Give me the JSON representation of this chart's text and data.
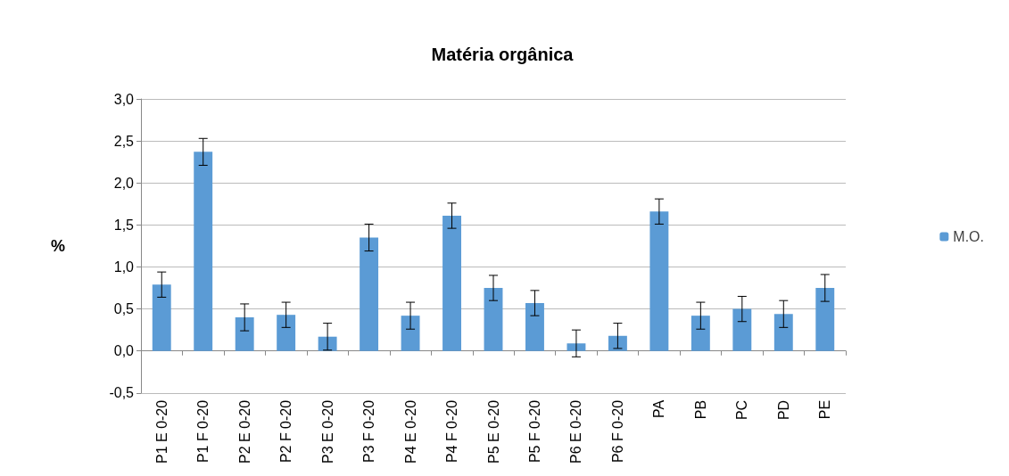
{
  "chart_data": {
    "type": "bar",
    "title": "Matéria orgânica",
    "ylabel": "%",
    "categories": [
      "P1 E 0-20",
      "P1 F 0-20",
      "P2 E 0-20",
      "P2 F 0-20",
      "P3 E 0-20",
      "P3 F 0-20",
      "P4 E 0-20",
      "P4 F 0-20",
      "P5 E 0-20",
      "P5 F 0-20",
      "P6 E 0-20",
      "P6 F 0-20",
      "PA",
      "PB",
      "PC",
      "PD",
      "PE"
    ],
    "series": [
      {
        "name": "M.O.",
        "color": "#5b9bd5",
        "values": [
          0.79,
          2.37,
          0.4,
          0.43,
          0.17,
          1.35,
          0.42,
          1.61,
          0.75,
          0.57,
          0.09,
          0.18,
          1.66,
          0.42,
          0.5,
          0.44,
          0.75
        ],
        "errors": [
          0.15,
          0.16,
          0.16,
          0.15,
          0.16,
          0.16,
          0.16,
          0.15,
          0.15,
          0.15,
          0.16,
          0.15,
          0.15,
          0.16,
          0.15,
          0.16,
          0.16
        ]
      }
    ],
    "ylim": [
      -0.5,
      3.0
    ],
    "yticks": [
      {
        "value": -0.5,
        "label": "-0,5"
      },
      {
        "value": 0,
        "label": "0,0"
      },
      {
        "value": 0.5,
        "label": "0,5"
      },
      {
        "value": 1,
        "label": "1,0"
      },
      {
        "value": 1.5,
        "label": "1,5"
      },
      {
        "value": 2,
        "label": "2,0"
      },
      {
        "value": 2.5,
        "label": "2,5"
      },
      {
        "value": 3,
        "label": "3,0"
      }
    ],
    "grid": "y",
    "legend": "right"
  }
}
